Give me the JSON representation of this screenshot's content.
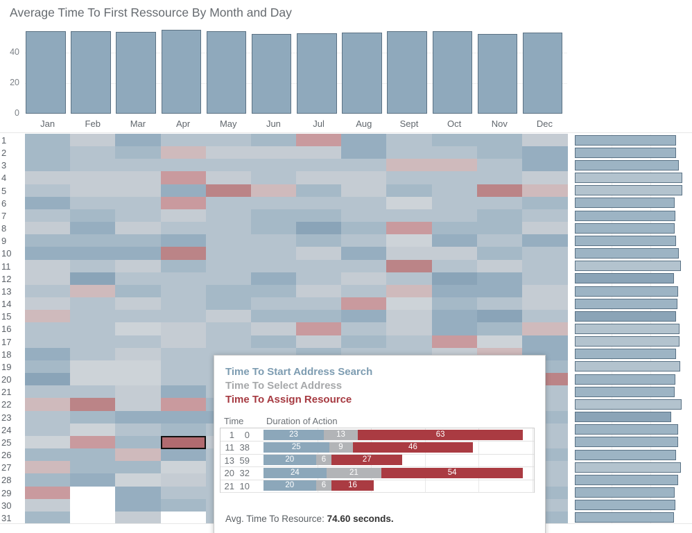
{
  "title": "Average Time To First Ressource By Month and Day",
  "colors": {
    "bar_fill": "#8fa9bc",
    "bar_border": "#5b7183",
    "day_bar_light": "#b3c3ce",
    "day_bar_medium": "#9db4c4",
    "day_bar_dark": "#8ba4b7",
    "selected_border": "#111111",
    "tooltip_blue": "#7d9cb1",
    "tooltip_gray": "#a6a8aa",
    "tooltip_red": "#a63a41",
    "seg_blue": "#8ca7ba",
    "seg_gray": "#b2b4b7",
    "seg_red": "#aa3b42"
  },
  "chart_data": [
    {
      "type": "bar",
      "name": "avg-time-by-month",
      "categories": [
        "Jan",
        "Feb",
        "Mar",
        "Apr",
        "May",
        "Jun",
        "Jul",
        "Aug",
        "Sept",
        "Oct",
        "Nov",
        "Dec"
      ],
      "values": [
        54.3,
        54.3,
        53.6,
        54.8,
        53.9,
        52.3,
        52.7,
        53.2,
        54.3,
        54.3,
        52.5,
        53.0
      ],
      "yticks": [
        40,
        20,
        0
      ],
      "ylim": [
        0,
        56
      ],
      "grid": true,
      "legend": "none"
    },
    {
      "type": "heatmap",
      "name": "avg-time-by-day-and-month",
      "columns": [
        "Jan",
        "Feb",
        "Mar",
        "Apr",
        "May",
        "Jun",
        "Jul",
        "Aug",
        "Sept",
        "Oct",
        "Nov",
        "Dec"
      ],
      "rows": [
        1,
        2,
        3,
        4,
        5,
        6,
        7,
        8,
        9,
        10,
        11,
        12,
        13,
        14,
        15,
        16,
        17,
        18,
        19,
        20,
        21,
        22,
        23,
        24,
        25,
        26,
        27,
        28,
        29,
        30,
        31
      ],
      "palette": {
        "a": "#cdd3d8",
        "b": "#c5ccd3",
        "c": "#b5c3ce",
        "d": "#a5b9c7",
        "e": "#96aec0",
        "f": "#8aa4b8",
        "p": "#cfbabc",
        "q": "#c99a9e",
        "r": "#bb8487",
        "s": "#b16b70",
        "w": "#ffffff"
      },
      "cells": [
        "dbeccdqecddb",
        "dcdpbbbeccde",
        "dcccccccppce",
        "bbbqbcbbcccb",
        "cbberpdbdcrp",
        "eccqccccaccd",
        "cdcbcddcccdc",
        "bebccdfdqddb",
        "dddeccdcaece",
        "eeerccbebbdc",
        "bcbdccccrcbc",
        "bfcccecbcfec",
        "cpdcddbcpeeb",
        "bcbcdccqadcb",
        "pcccbddebefc",
        "ccabcbqcbedp",
        "cccbcdbdcqae",
        "ecbcccdccbpe",
        "daaccccccccd",
        "faaccccccccr",
        "ccbecccccccc",
        "prbqdccccccc",
        "cdeeeccccccd",
        "cacdcccccccc",
        "aqdsbccccccc",
        "ddpecccccccd",
        "pddacccccccc",
        "deabcccccccc",
        "qweccccccccd",
        "bwedcccccccc",
        "dwbwcccccccd"
      ],
      "selected_cell": {
        "day": 25,
        "month": "Apr"
      }
    },
    {
      "type": "bar",
      "name": "avg-time-by-day",
      "orientation": "horizontal",
      "categories": [
        1,
        2,
        3,
        4,
        5,
        6,
        7,
        8,
        9,
        10,
        11,
        12,
        13,
        14,
        15,
        16,
        17,
        18,
        19,
        20,
        21,
        22,
        23,
        24,
        25,
        26,
        27,
        28,
        29,
        30,
        31
      ],
      "values": [
        55.1,
        55.1,
        56.6,
        58.5,
        58.5,
        54.3,
        54.7,
        54.3,
        55.1,
        56.6,
        57.7,
        54.0,
        56.2,
        55.8,
        55.1,
        57.0,
        57.0,
        55.1,
        57.4,
        54.7,
        54.3,
        58.1,
        52.5,
        56.2,
        56.2,
        55.1,
        57.7,
        56.2,
        54.3,
        54.7,
        54.0
      ],
      "shades": [
        "m",
        "m",
        "m",
        "l",
        "l",
        "m",
        "m",
        "m",
        "m",
        "m",
        "l",
        "d",
        "m",
        "m",
        "d",
        "l",
        "l",
        "m",
        "l",
        "m",
        "m",
        "l",
        "d",
        "m",
        "m",
        "m",
        "l",
        "m",
        "m",
        "m",
        "m"
      ],
      "grid": true,
      "legend": "none"
    },
    {
      "type": "bar",
      "name": "tooltip-duration-stacked",
      "series_labels": [
        "Time To Start Address Search",
        "Time To Select Address",
        "Time To Assign Resource"
      ],
      "rows": [
        {
          "hour": "1",
          "minute": "0",
          "segments": [
            23,
            13,
            63
          ]
        },
        {
          "hour": "11",
          "minute": "38",
          "segments": [
            25,
            9,
            46
          ]
        },
        {
          "hour": "13",
          "minute": "59",
          "segments": [
            20,
            6,
            27
          ]
        },
        {
          "hour": "20",
          "minute": "32",
          "segments": [
            24,
            21,
            54
          ]
        },
        {
          "hour": "21",
          "minute": "10",
          "segments": [
            20,
            6,
            16
          ]
        }
      ],
      "xlim": [
        0,
        103
      ]
    }
  ],
  "tooltip": {
    "legend": [
      {
        "label": "Time To Start Address Search"
      },
      {
        "label": "Time To Select Address"
      },
      {
        "label": "Time To Assign Resource"
      }
    ],
    "table_header": {
      "time": "Time",
      "duration": "Duration of Action"
    },
    "footer_label": "Avg. Time To Resource: ",
    "footer_value": "74.60 seconds."
  }
}
